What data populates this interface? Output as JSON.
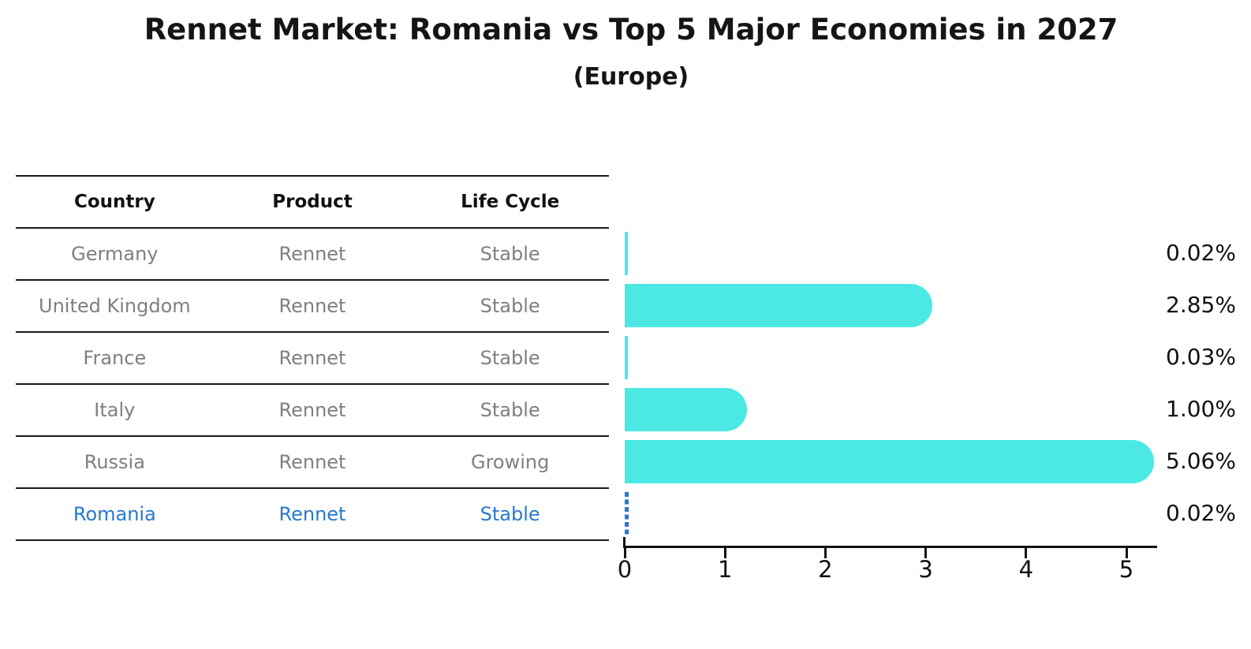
{
  "title": "Rennet Market: Romania vs Top 5 Major Economies in 2027",
  "subtitle": "(Europe)",
  "table": {
    "headers": [
      "Country",
      "Product",
      "Life Cycle"
    ],
    "rows": [
      {
        "country": "Germany",
        "product": "Rennet",
        "life_cycle": "Stable",
        "highlight": false
      },
      {
        "country": "United Kingdom",
        "product": "Rennet",
        "life_cycle": "Stable",
        "highlight": false
      },
      {
        "country": "France",
        "product": "Rennet",
        "life_cycle": "Stable",
        "highlight": false
      },
      {
        "country": "Italy",
        "product": "Rennet",
        "life_cycle": "Stable",
        "highlight": false
      },
      {
        "country": "Russia",
        "product": "Rennet",
        "life_cycle": "Growing",
        "highlight": false
      },
      {
        "country": "Romania",
        "product": "Rennet",
        "life_cycle": "Stable",
        "highlight": true
      }
    ]
  },
  "chart_data": {
    "type": "bar",
    "orientation": "horizontal",
    "title": "Rennet Market: Romania vs Top 5 Major Economies in 2027 (Europe)",
    "categories": [
      "Germany",
      "United Kingdom",
      "France",
      "Italy",
      "Russia",
      "Romania"
    ],
    "values": [
      0.02,
      2.85,
      0.03,
      1.0,
      5.06,
      0.02
    ],
    "value_labels": [
      "0.02%",
      "2.85%",
      "0.03%",
      "1.00%",
      "5.06%",
      "0.02%"
    ],
    "xlabel": "",
    "ylabel": "",
    "xticks": [
      0,
      1,
      2,
      3,
      4,
      5
    ],
    "xlim": [
      0,
      5.3
    ],
    "grid": false,
    "legend": false,
    "highlight_index": 5,
    "highlight_style": "dashed-outline",
    "colors": {
      "bar": "#4be8e4",
      "highlight": "#2878d0",
      "axis": "#111111",
      "row_text": "#7f7f7f",
      "header_text": "#111111"
    }
  }
}
